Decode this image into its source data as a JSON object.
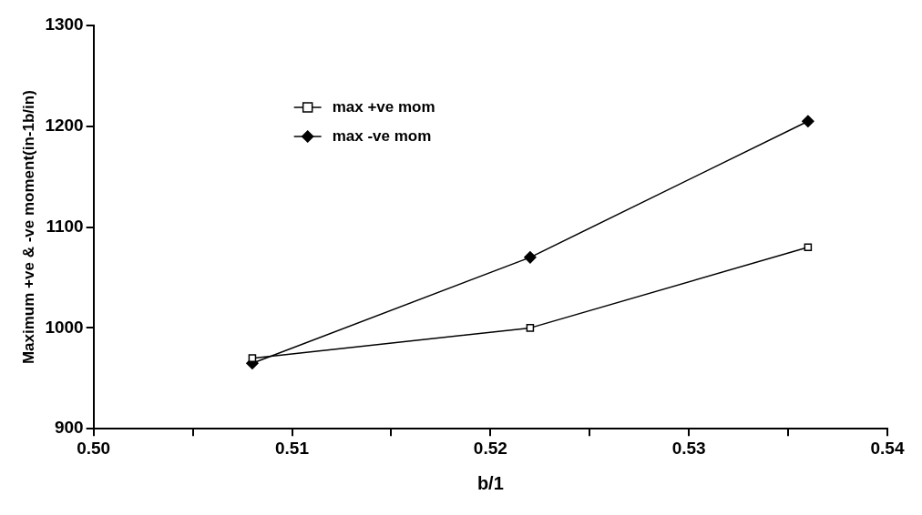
{
  "chart_data": {
    "type": "line",
    "xlabel": "b/1",
    "ylabel": "Maximum +ve & -ve moment(in-1b/in)",
    "x": [
      0.508,
      0.522,
      0.536
    ],
    "series": [
      {
        "name": "max +ve mom",
        "color": "#000000",
        "marker": "square",
        "values": [
          970,
          1000,
          1080
        ]
      },
      {
        "name": "max -ve mom",
        "color": "#000000",
        "marker": "diamond",
        "values": [
          965,
          1070,
          1205
        ]
      }
    ],
    "xlim": [
      0.5,
      0.54
    ],
    "xticks": [
      {
        "value": 0.5,
        "label": "0.50"
      },
      {
        "value": 0.505,
        "label": null
      },
      {
        "value": 0.51,
        "label": "0.51"
      },
      {
        "value": 0.515,
        "label": null
      },
      {
        "value": 0.52,
        "label": "0.52"
      },
      {
        "value": 0.525,
        "label": null
      },
      {
        "value": 0.53,
        "label": "0.53"
      },
      {
        "value": 0.535,
        "label": null
      },
      {
        "value": 0.54,
        "label": "0.54"
      }
    ],
    "ylim": [
      900,
      1300
    ],
    "yticks": [
      900,
      1000,
      1100,
      1200,
      1300
    ],
    "grid": false,
    "legend": "top left",
    "line_style": "solid"
  }
}
